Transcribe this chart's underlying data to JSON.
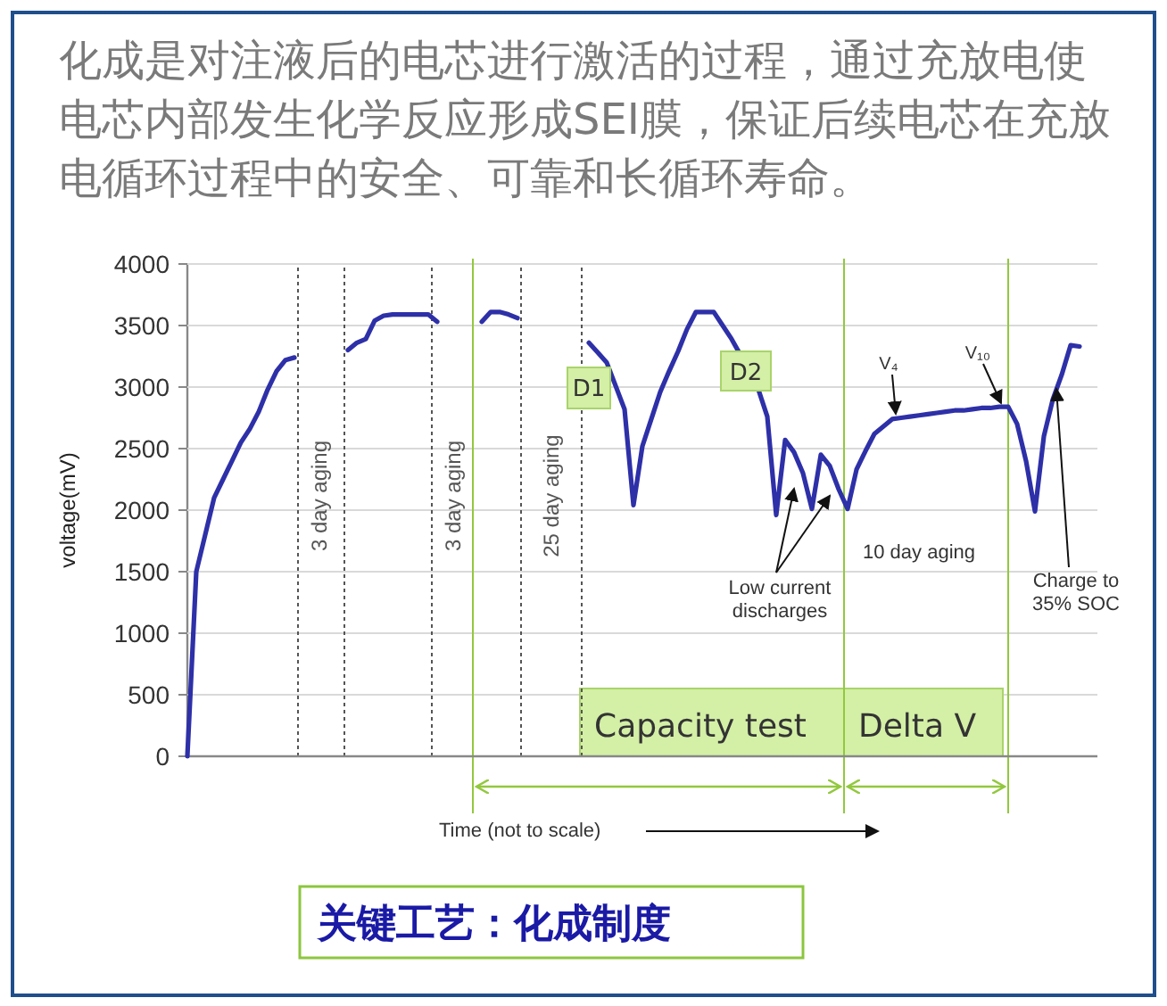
{
  "chart_data": {
    "type": "line",
    "title": "化成是对注液后的电芯进行激活的过程，通过充放电使电芯内部发生化学反应形成SEI膜，保证后续电芯在充放电循环过程中的安全、可靠和长循环寿命。",
    "xlabel": "Time (not to scale)",
    "ylabel": "voltage(mV)",
    "categories": [
      null,
      null,
      null,
      null,
      null,
      null,
      null,
      null,
      null,
      null,
      null,
      null,
      null,
      null,
      null,
      null,
      null,
      null,
      null,
      null,
      null,
      null,
      null,
      null,
      null,
      null,
      null,
      null,
      null,
      null,
      null,
      null,
      null,
      null,
      null,
      null,
      null,
      null,
      null,
      null,
      null,
      null,
      null,
      null,
      null,
      null,
      null,
      null,
      null,
      null,
      null,
      null,
      null,
      null,
      null,
      null,
      null,
      null,
      null,
      null,
      null,
      null,
      null,
      null,
      null,
      null,
      null,
      null,
      null,
      null,
      null,
      null,
      null,
      null,
      null,
      null,
      null,
      null,
      null,
      null,
      null,
      null,
      null,
      null,
      null,
      null,
      null,
      null,
      null,
      null,
      null,
      null,
      null,
      null,
      null,
      null,
      null,
      null,
      null,
      null,
      null
    ],
    "ylim": [
      0,
      4000
    ],
    "yticks": [
      0,
      500,
      1000,
      1500,
      2000,
      2500,
      3000,
      3500,
      4000
    ],
    "grid": "y",
    "tick_labels": "y",
    "marker": "none",
    "line_style": "solid",
    "series": [
      {
        "color": "#2e30a8",
        "values": [
          0,
          1500,
          1800,
          2100,
          2250,
          2400,
          2550,
          2660,
          2800,
          2980,
          3130,
          3220,
          3240,
          null,
          null,
          null,
          null,
          null,
          null,
          null,
          null,
          null,
          null,
          null,
          null,
          null,
          null,
          null,
          null,
          null,
          null,
          null,
          null,
          null,
          null,
          null,
          null,
          null,
          null,
          null,
          null,
          null,
          null,
          null,
          null,
          null,
          null,
          null,
          null,
          null,
          null,
          null,
          null,
          null,
          null,
          null,
          null,
          null,
          null,
          null,
          null,
          null,
          null,
          null,
          null,
          null,
          null,
          null,
          null,
          null,
          null,
          null,
          null,
          null,
          null,
          null,
          null,
          null,
          null,
          null,
          null,
          null,
          null,
          null,
          null,
          null,
          null,
          null,
          null,
          null,
          null,
          null,
          null,
          null,
          null,
          null,
          null,
          null,
          null,
          null,
          null
        ]
      },
      {
        "color": "#2e30a8",
        "values": [
          null,
          null,
          null,
          null,
          null,
          null,
          null,
          null,
          null,
          null,
          null,
          null,
          null,
          null,
          null,
          null,
          null,
          null,
          3300,
          3360,
          3390,
          3540,
          3580,
          3590,
          3590,
          3590,
          3590,
          3590,
          3530,
          null,
          null,
          null,
          null,
          null,
          null,
          null,
          null,
          null,
          null,
          null,
          null,
          null,
          null,
          null,
          null,
          null,
          null,
          null,
          null,
          null,
          null,
          null,
          null,
          null,
          null,
          null,
          null,
          null,
          null,
          null,
          null,
          null,
          null,
          null,
          null,
          null,
          null,
          null,
          null,
          null,
          null,
          null,
          null,
          null,
          null,
          null,
          null,
          null,
          null,
          null,
          null,
          null,
          null,
          null,
          null,
          null,
          null,
          null,
          null,
          null,
          null,
          null,
          null,
          null,
          null,
          null,
          null,
          null,
          null,
          null,
          null
        ]
      },
      {
        "color": "#2e30a8",
        "values": [
          null,
          null,
          null,
          null,
          null,
          null,
          null,
          null,
          null,
          null,
          null,
          null,
          null,
          null,
          null,
          null,
          null,
          null,
          null,
          null,
          null,
          null,
          null,
          null,
          null,
          null,
          null,
          null,
          null,
          null,
          null,
          null,
          null,
          3530,
          3610,
          3610,
          3590,
          3560,
          null,
          null,
          null,
          null,
          null,
          null,
          null,
          null,
          null,
          null,
          null,
          null,
          null,
          null,
          null,
          null,
          null,
          null,
          null,
          null,
          null,
          null,
          null,
          null,
          null,
          null,
          null,
          null,
          null,
          null,
          null,
          null,
          null,
          null,
          null,
          null,
          null,
          null,
          null,
          null,
          null,
          null,
          null,
          null,
          null,
          null,
          null,
          null,
          null,
          null,
          null,
          null,
          null,
          null,
          null,
          null,
          null,
          null,
          null,
          null,
          null,
          null,
          null
        ]
      },
      {
        "color": "#2e30a8",
        "values": [
          null,
          null,
          null,
          null,
          null,
          null,
          null,
          null,
          null,
          null,
          null,
          null,
          null,
          null,
          null,
          null,
          null,
          null,
          null,
          null,
          null,
          null,
          null,
          null,
          null,
          null,
          null,
          null,
          null,
          null,
          null,
          null,
          null,
          null,
          null,
          null,
          null,
          null,
          null,
          null,
          null,
          null,
          null,
          null,
          null,
          3360,
          3280,
          3200,
          3010,
          2820,
          2040,
          2520,
          2740,
          2960,
          3130,
          3290,
          3470,
          3610,
          3610,
          3610,
          3500,
          3390,
          3260,
          3140,
          2980,
          2760,
          1960,
          2570,
          2470,
          2300,
          2010,
          2450,
          2360,
          2170,
          2010,
          2330,
          2480,
          2620,
          2680,
          2740,
          2750,
          2760,
          2770,
          2780,
          2790,
          2800,
          2810,
          2810,
          2820,
          2830,
          2830,
          2840,
          2840,
          2700,
          2400,
          1990,
          2600,
          2900,
          3100,
          3340,
          3330
        ]
      }
    ],
    "annotations": [
      "D1",
      "D2",
      "V₄",
      "V₁₀",
      "Low current discharges",
      "10 day aging",
      "Charge to 35% SOC",
      "关键工艺：化成制度",
      "3 day aging",
      "3 day aging",
      "25 day aging",
      "Capacity test",
      "Delta V"
    ]
  }
}
